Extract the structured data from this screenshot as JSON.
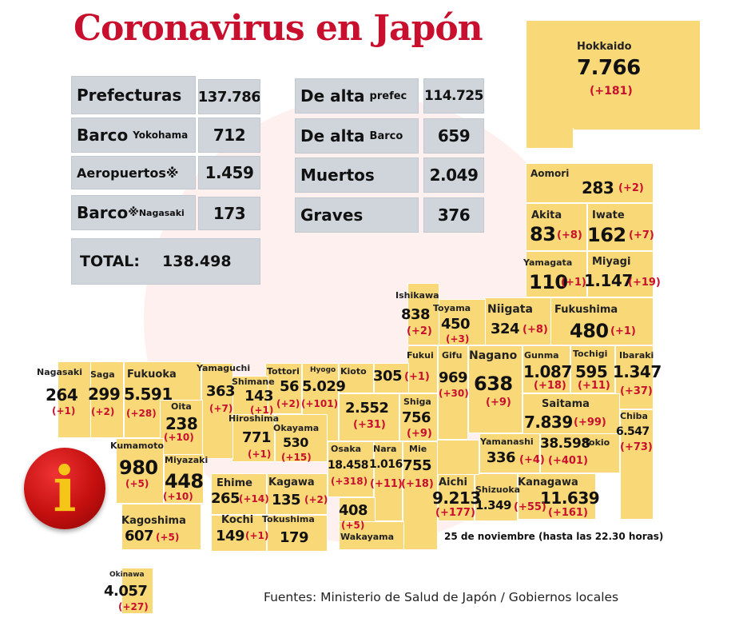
{
  "title": "Coronavirus en Japón",
  "date_note": "25 de noviembre  (hasta las 22.30 horas)",
  "sources": "Fuentes: Ministerio de Salud de Japón / Gobiernos locales",
  "summary": {
    "prefecturas": {
      "label": "Prefecturas",
      "value": "137.786"
    },
    "barco_yokohama": {
      "label": "Barco",
      "sub": "Yokohama",
      "value": "712"
    },
    "aeropuertos": {
      "label": "Aeropuertos※",
      "value": "1.459"
    },
    "barco_nagasaki": {
      "label": "Barco",
      "mark": "※",
      "sub": "Nagasaki",
      "value": "173"
    },
    "total": {
      "label": "TOTAL:",
      "value": "138.498"
    },
    "de_alta_prefec": {
      "label": "De alta",
      "sub": "prefec",
      "value": "114.725"
    },
    "de_alta_barco": {
      "label": "De alta",
      "sub": "Barco",
      "value": "659"
    },
    "muertos": {
      "label": "Muertos",
      "value": "2.049"
    },
    "graves": {
      "label": "Graves",
      "value": "376"
    }
  },
  "prefectures": {
    "hokkaido": {
      "name": "Hokkaido",
      "cases": "7.766",
      "delta": "(+181)"
    },
    "aomori": {
      "name": "Aomori",
      "cases": "283",
      "delta": "(+2)"
    },
    "akita": {
      "name": "Akita",
      "cases": "83",
      "delta": "(+8)"
    },
    "iwate": {
      "name": "Iwate",
      "cases": "162",
      "delta": "(+7)"
    },
    "yamagata": {
      "name": "Yamagata",
      "cases": "110",
      "delta": "(+1)"
    },
    "miyagi": {
      "name": "Miyagi",
      "cases": "1.147",
      "delta": "(+19)"
    },
    "fukushima": {
      "name": "Fukushima",
      "cases": "480",
      "delta": "(+1)"
    },
    "niigata": {
      "name": "Niigata",
      "cases": "324",
      "delta": "(+8)"
    },
    "ishikawa": {
      "name": "Ishikawa",
      "cases": "838",
      "delta": "(+2)"
    },
    "toyama": {
      "name": "Toyama",
      "cases": "450",
      "delta": "(+3)"
    },
    "fukui": {
      "name": "Fukui",
      "cases": "305",
      "delta": "(+1)"
    },
    "gifu": {
      "name": "Gifu",
      "cases": "969",
      "delta": "(+30)"
    },
    "nagano": {
      "name": "Nagano",
      "cases": "638",
      "delta": "(+9)"
    },
    "gunma": {
      "name": "Gunma",
      "cases": "1.087",
      "delta": "(+18)"
    },
    "tochigi": {
      "name": "Tochigi",
      "cases": "595",
      "delta": "(+11)"
    },
    "ibaraki": {
      "name": "Ibaraki",
      "cases": "1.347",
      "delta": "(+37)"
    },
    "saitama": {
      "name": "Saitama",
      "cases": "7.839",
      "delta": "(+99)"
    },
    "chiba": {
      "name": "Chiba",
      "cases": "6.547",
      "delta": "(+73)"
    },
    "yamanashi": {
      "name": "Yamanashi",
      "cases": "336",
      "delta": "(+4)"
    },
    "tokio": {
      "name": "Tokio",
      "cases": "38.598",
      "delta": "(+401)"
    },
    "kanagawa": {
      "name": "Kanagawa",
      "cases": "11.639",
      "delta": "(+161)"
    },
    "shizuoka": {
      "name": "Shizuoka",
      "cases": "1.349",
      "delta": "(+55)"
    },
    "aichi": {
      "name": "Aichi",
      "cases": "9.213",
      "delta": "(+177)"
    },
    "mie": {
      "name": "Mie",
      "cases": "755",
      "delta": "(+18)"
    },
    "shiga": {
      "name": "Shiga",
      "cases": "756",
      "delta": "(+9)"
    },
    "kioto": {
      "name": "Kioto",
      "cases": "2.552",
      "delta": "(+31)"
    },
    "hyogo": {
      "name": "Hyogo",
      "cases": "5.029",
      "delta": "(+101)"
    },
    "osaka": {
      "name": "Osaka",
      "cases": "18.458",
      "delta": "(+318)"
    },
    "nara": {
      "name": "Nara",
      "cases": "1.016",
      "delta": "(+11)"
    },
    "wakayama": {
      "name": "Wakayama",
      "cases": "408",
      "delta": "(+5)"
    },
    "tottori": {
      "name": "Tottori",
      "cases": "56",
      "delta": "(+2)"
    },
    "shimane": {
      "name": "Shimane",
      "cases": "143",
      "delta": "(+1)"
    },
    "okayama": {
      "name": "Okayama",
      "cases": "530",
      "delta": "(+15)"
    },
    "hiroshima": {
      "name": "Hiroshima",
      "cases": "771",
      "delta": "(+1)"
    },
    "yamaguchi": {
      "name": "Yamaguchi",
      "cases": "363",
      "delta": "(+7)"
    },
    "ehime": {
      "name": "Ehime",
      "cases": "265",
      "delta": "(+14)"
    },
    "kagawa": {
      "name": "Kagawa",
      "cases": "135",
      "delta": "(+2)"
    },
    "kochi": {
      "name": "Kochi",
      "cases": "149",
      "delta": "(+1)"
    },
    "tokushima": {
      "name": "Tokushima",
      "cases": "179"
    },
    "fukuoka": {
      "name": "Fukuoka",
      "cases": "5.591",
      "delta": "(+28)"
    },
    "saga": {
      "name": "Saga",
      "cases": "299",
      "delta": "(+2)"
    },
    "nagasaki": {
      "name": "Nagasaki",
      "cases": "264",
      "delta": "(+1)"
    },
    "oita": {
      "name": "Oita",
      "cases": "238",
      "delta": "(+10)"
    },
    "kumamoto": {
      "name": "Kumamoto",
      "cases": "980",
      "delta": "(+5)"
    },
    "miyazaki": {
      "name": "Miyazaki",
      "cases": "448",
      "delta": "(+10)"
    },
    "kagoshima": {
      "name": "Kagoshima",
      "cases": "607",
      "delta": "(+5)"
    },
    "okinawa": {
      "name": "Okinawa",
      "cases": "4.057",
      "delta": "(+27)"
    }
  },
  "info_icon": {
    "glyph": "i"
  },
  "colors": {
    "title": "#c8102e",
    "cell": "#f9d877",
    "delta": "#c8102e",
    "summary_box": "#d0d5dc"
  }
}
